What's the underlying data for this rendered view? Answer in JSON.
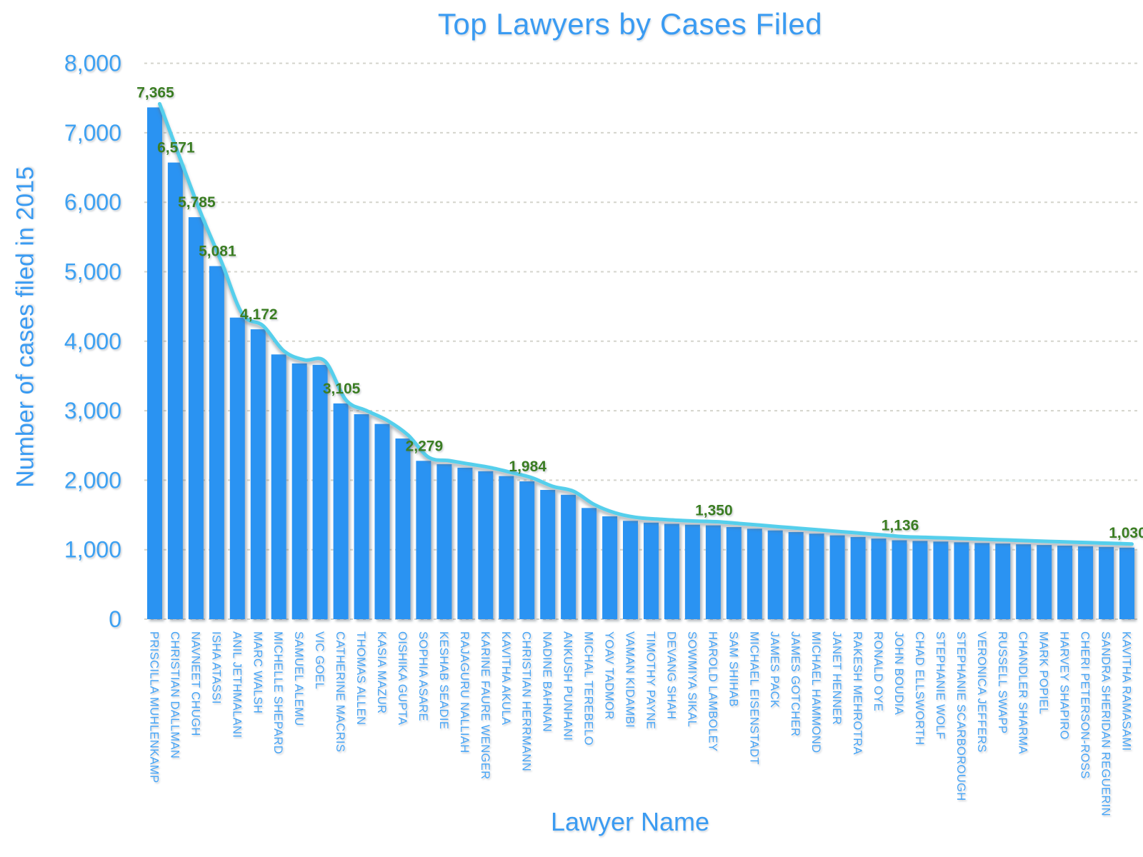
{
  "title": "Top Lawyers by Cases Filed",
  "x_axis": {
    "title": "Lawyer Name"
  },
  "y_axis": {
    "title": "Number of cases filed in 2015",
    "tick_labels": [
      "0",
      "1,000",
      "2,000",
      "3,000",
      "4,000",
      "5,000",
      "6,000",
      "7,000",
      "8,000"
    ]
  },
  "colors": {
    "bar": "#2B93F2",
    "trend_line": "#55CFEC",
    "title_text": "#3A9BF2",
    "axis_tick_text": "#3DA1F2",
    "category_text": "#47A4F5",
    "value_label_text": "#3A7D21",
    "gridline": "#D4D4CC",
    "background": "#FFFFFF"
  },
  "chart_data": {
    "type": "bar",
    "title": "Top Lawyers by Cases Filed",
    "xlabel": "Lawyer Name",
    "ylabel": "Number of cases filed in 2015",
    "ylim": [
      0,
      8000
    ],
    "y_tick_step": 1000,
    "grid": true,
    "legend": false,
    "line_overlay": "smoothed cyan line tracing the bar tops",
    "categories": [
      "PRISCILLA MUHLENKAMP",
      "CHRISTIAN DALLMAN",
      "NAVNEET CHUGH",
      "ISHA ATASSI",
      "ANIL JETHMALANI",
      "MARC WALSH",
      "MICHELLE SHEPARD",
      "SAMUEL ALEMU",
      "VIC GOEL",
      "CATHERINE MACRIS",
      "THOMAS ALLEN",
      "KASIA MAZUR",
      "OISHIKA GUPTA",
      "SOPHIA ASARE",
      "KESHAB SEADIE",
      "RAJAGURU NALLIAH",
      "KARINE FAURE WENGER",
      "KAVITHA AKULA",
      "CHRISTIAN HERRMANN",
      "NADINE BAHNAN",
      "ANKUSH PUNHANI",
      "MICHAL TEREBELO",
      "YOAV TADMOR",
      "VAMAN KIDAMBI",
      "TIMOTHY PAYNE",
      "DEVANG SHAH",
      "SOWMIYA SIKAL",
      "HAROLD LAMBOLEY",
      "SAM SHIHAB",
      "MICHAEL EISENSTADT",
      "JAMES PACK",
      "JAMES GOTCHER",
      "MICHAEL HAMMOND",
      "JANET HENNER",
      "RAKESH MEHROTRA",
      "RONALD OYE",
      "JOHN BOUDIA",
      "CHAD ELLSWORTH",
      "STEPHANIE WOLF",
      "STEPHANIE SCARBOROUGH",
      "VERONICA JEFFERS",
      "RUSSELL SWAPP",
      "CHANDLER SHARMA",
      "MARK POPIEL",
      "HARVEY SHAPIRO",
      "CHERI PETERSON-ROSS",
      "SANDRA SHERIDAN REGUERIN",
      "KAVITHA RAMASAMI"
    ],
    "values": [
      7365,
      6571,
      5785,
      5081,
      4340,
      4172,
      3810,
      3680,
      3660,
      3105,
      2950,
      2810,
      2600,
      2279,
      2230,
      2180,
      2130,
      2060,
      1984,
      1860,
      1790,
      1600,
      1480,
      1415,
      1390,
      1372,
      1360,
      1350,
      1326,
      1302,
      1278,
      1254,
      1231,
      1207,
      1183,
      1160,
      1136,
      1126,
      1117,
      1107,
      1097,
      1088,
      1078,
      1068,
      1059,
      1049,
      1040,
      1030
    ],
    "point_labels": [
      {
        "index": 0,
        "text": "7,365"
      },
      {
        "index": 1,
        "text": "6,571"
      },
      {
        "index": 2,
        "text": "5,785"
      },
      {
        "index": 3,
        "text": "5,081"
      },
      {
        "index": 5,
        "text": "4,172"
      },
      {
        "index": 9,
        "text": "3,105"
      },
      {
        "index": 13,
        "text": "2,279"
      },
      {
        "index": 18,
        "text": "1,984"
      },
      {
        "index": 27,
        "text": "1,350"
      },
      {
        "index": 36,
        "text": "1,136"
      },
      {
        "index": 47,
        "text": "1,030"
      }
    ]
  }
}
